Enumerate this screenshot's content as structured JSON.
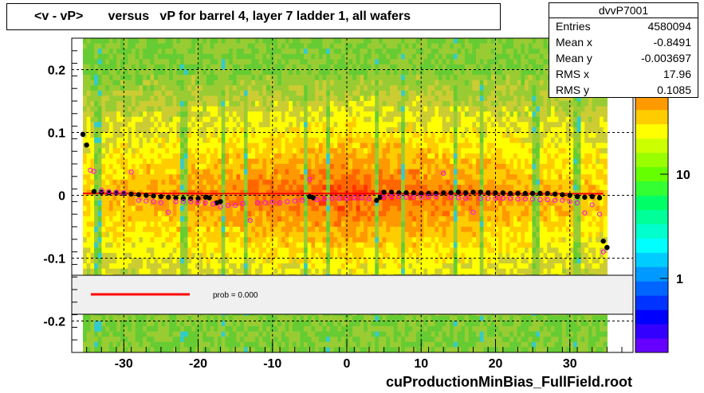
{
  "title": "<v - vP>       versus   vP for barrel 4, layer 7 ladder 1, all wafers",
  "stats": {
    "name": "dvvP7001",
    "rows": [
      {
        "label": "Entries",
        "value": "4580094"
      },
      {
        "label": "Mean x",
        "value": "-0.8491"
      },
      {
        "label": "Mean y",
        "value": "-0.003697"
      },
      {
        "label": "RMS x",
        "value": "17.96"
      },
      {
        "label": "RMS y",
        "value": "0.1085"
      }
    ]
  },
  "footer": "cuProductionMinBias_FullField.root",
  "legend": {
    "text": "prob = 0.000",
    "line_color": "#ff0000"
  },
  "colorbar": {
    "labels": [
      "1",
      "10",
      "10"
    ],
    "exponent": "2"
  },
  "chart_data": {
    "type": "heatmap",
    "title": "<v - vP>       versus   vP for barrel 4, layer 7 ladder 1, all wafers",
    "xlabel": "",
    "ylabel": "",
    "xlim": [
      -37,
      38.5
    ],
    "ylim": [
      -0.25,
      0.25
    ],
    "x_ticks": [
      -30,
      -20,
      -10,
      0,
      10,
      20,
      30
    ],
    "x_tick_labels": [
      "-30",
      "-20",
      "-10",
      "0",
      "10",
      "20",
      "30"
    ],
    "y_ticks": [
      0.2,
      0.1,
      0,
      -0.1,
      -0.2
    ],
    "y_tick_labels": [
      "0.2",
      "0.1",
      "0",
      "-0.1",
      "-0.2"
    ],
    "grid": true,
    "colorscale": "log",
    "fit_line": {
      "x": [
        -35.5,
        34.5
      ],
      "y": [
        0.003,
        0.0025
      ],
      "color": "#ff0000"
    },
    "series": [
      {
        "name": "",
        "color": "#000000",
        "points": [
          [
            -35.5,
            0.097
          ],
          [
            -35,
            0.08
          ],
          [
            -34,
            0.006
          ],
          [
            -33,
            0.005
          ],
          [
            -32,
            0.004
          ],
          [
            -31,
            0.004
          ],
          [
            -30,
            0.003
          ],
          [
            -29,
            0.002
          ],
          [
            -28,
            0.001
          ],
          [
            -27,
            0.0
          ],
          [
            -26,
            -0.001
          ],
          [
            -25,
            -0.002
          ],
          [
            -24,
            -0.003
          ],
          [
            -23,
            -0.004
          ],
          [
            -22,
            -0.005
          ],
          [
            -21,
            -0.005
          ],
          [
            -20,
            -0.005
          ],
          [
            -19,
            -0.003
          ],
          [
            -18.5,
            -0.004
          ],
          [
            -17.5,
            -0.012
          ],
          [
            -17,
            -0.01
          ],
          [
            -5,
            -0.002
          ],
          [
            -4.5,
            -0.004
          ],
          [
            4,
            -0.008
          ],
          [
            4.5,
            -0.003
          ],
          [
            5,
            0.005
          ],
          [
            6,
            0.005
          ],
          [
            7,
            0.004
          ],
          [
            8,
            0.004
          ],
          [
            9,
            0.004
          ],
          [
            10,
            0.003
          ],
          [
            11,
            0.003
          ],
          [
            12,
            0.003
          ],
          [
            13,
            0.004
          ],
          [
            14,
            0.004
          ],
          [
            15,
            0.005
          ],
          [
            16,
            0.004
          ],
          [
            17,
            0.005
          ],
          [
            18,
            0.005
          ],
          [
            19,
            0.004
          ],
          [
            20,
            0.004
          ],
          [
            21,
            0.004
          ],
          [
            22,
            0.003
          ],
          [
            23,
            0.003
          ],
          [
            24,
            0.003
          ],
          [
            25,
            0.003
          ],
          [
            26,
            0.003
          ],
          [
            27,
            0.003
          ],
          [
            28,
            0.002
          ],
          [
            29,
            0.001
          ],
          [
            30,
            0.0
          ],
          [
            31,
            -0.002
          ],
          [
            32,
            -0.003
          ],
          [
            33,
            -0.002
          ],
          [
            34,
            -0.004
          ],
          [
            34.5,
            -0.073
          ],
          [
            35,
            -0.083
          ]
        ]
      },
      {
        "name": "",
        "color": "#ff00ff",
        "points": [
          [
            -34.5,
            0.04
          ],
          [
            -34,
            0.038
          ],
          [
            -33,
            0.008
          ],
          [
            -32,
            0.006
          ],
          [
            -31,
            0.005
          ],
          [
            -30,
            0.004
          ],
          [
            -29,
            0.037
          ],
          [
            -28,
            -0.008
          ],
          [
            -27,
            -0.009
          ],
          [
            -26,
            -0.01
          ],
          [
            -25,
            -0.012
          ],
          [
            -24,
            -0.027
          ],
          [
            -23,
            -0.01
          ],
          [
            -22,
            -0.01
          ],
          [
            -21,
            -0.01
          ],
          [
            -20,
            -0.011
          ],
          [
            -19,
            -0.012
          ],
          [
            -18,
            -0.014
          ],
          [
            -17,
            -0.018
          ],
          [
            -16,
            -0.016
          ],
          [
            -15,
            -0.016
          ],
          [
            -14,
            -0.013
          ],
          [
            -13,
            -0.04
          ],
          [
            -12,
            -0.012
          ],
          [
            -11,
            -0.012
          ],
          [
            -10,
            -0.011
          ],
          [
            -9,
            -0.012
          ],
          [
            -8,
            -0.01
          ],
          [
            -7,
            -0.009
          ],
          [
            -6,
            -0.008
          ],
          [
            -5,
            0.025
          ],
          [
            -4,
            -0.007
          ],
          [
            -3,
            -0.006
          ],
          [
            -2,
            -0.005
          ],
          [
            -1,
            -0.005
          ],
          [
            0,
            -0.005
          ],
          [
            1,
            -0.004
          ],
          [
            2,
            -0.004
          ],
          [
            3,
            -0.006
          ],
          [
            5,
            -0.003
          ],
          [
            6,
            -0.002
          ],
          [
            7,
            -0.002
          ],
          [
            8,
            -0.003
          ],
          [
            9,
            -0.003
          ],
          [
            10,
            -0.003
          ],
          [
            11,
            -0.002
          ],
          [
            12,
            -0.002
          ],
          [
            13,
            0.035
          ],
          [
            14,
            -0.003
          ],
          [
            15,
            -0.004
          ],
          [
            16,
            -0.005
          ],
          [
            17,
            -0.027
          ],
          [
            18,
            -0.005
          ],
          [
            19,
            -0.005
          ],
          [
            20,
            -0.005
          ],
          [
            21,
            -0.005
          ],
          [
            22,
            -0.005
          ],
          [
            23,
            -0.006
          ],
          [
            24,
            -0.006
          ],
          [
            25,
            -0.006
          ],
          [
            26,
            -0.007
          ],
          [
            27,
            -0.007
          ],
          [
            28,
            -0.008
          ],
          [
            29,
            -0.008
          ],
          [
            30,
            -0.01
          ],
          [
            31,
            -0.012
          ],
          [
            32,
            -0.028
          ],
          [
            33,
            -0.015
          ],
          [
            34,
            -0.03
          ],
          [
            34.5,
            -0.09
          ]
        ]
      }
    ]
  }
}
